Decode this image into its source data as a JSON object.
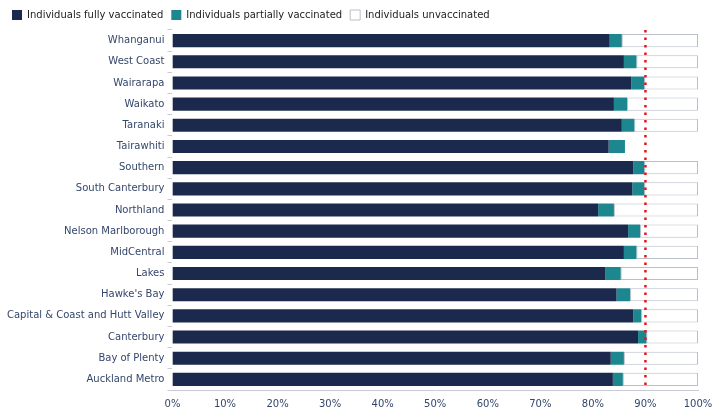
{
  "chart_data": {
    "type": "bar",
    "orientation": "horizontal",
    "stacked": true,
    "legend": "top",
    "grid": false,
    "categories": [
      "Whanganui",
      "West Coast",
      "Wairarapa",
      "Waikato",
      "Taranaki",
      "Tairawhiti",
      "Southern",
      "South Canterbury",
      "Northland",
      "Nelson Marlborough",
      "MidCentral",
      "Lakes",
      "Hawke's Bay",
      "Capital & Coast and Hutt Valley",
      "Canterbury",
      "Bay of Plenty",
      "Auckland Metro"
    ],
    "series": [
      {
        "name": "Individuals fully vaccinated",
        "color": "#1b2a4c",
        "values": [
          83.2,
          85.9,
          87.3,
          84.0,
          85.5,
          83.0,
          87.7,
          87.5,
          81.0,
          86.7,
          85.9,
          82.4,
          84.5,
          87.7,
          88.6,
          83.4,
          83.8
        ]
      },
      {
        "name": "Individuals partially vaccinated",
        "color": "#1d8790",
        "values": [
          2.3,
          2.4,
          2.5,
          2.5,
          2.4,
          3.1,
          2.1,
          2.3,
          3.0,
          2.3,
          2.4,
          2.9,
          2.6,
          1.5,
          1.6,
          2.5,
          1.9
        ]
      },
      {
        "name": "Individuals unvaccinated",
        "color": "#ffffff",
        "values": [
          14.5,
          11.7,
          10.2,
          13.5,
          12.1,
          null,
          10.2,
          10.2,
          16.0,
          11.0,
          11.7,
          14.7,
          12.9,
          10.8,
          9.8,
          14.1,
          14.3
        ]
      }
    ],
    "xlim": [
      0,
      100
    ],
    "xticks": [
      {
        "value": 0,
        "label": "0%"
      },
      {
        "value": 10,
        "label": "10%"
      },
      {
        "value": 20,
        "label": "20%"
      },
      {
        "value": 30,
        "label": "30%"
      },
      {
        "value": 40,
        "label": "40%"
      },
      {
        "value": 50,
        "label": "50%"
      },
      {
        "value": 60,
        "label": "60%"
      },
      {
        "value": 70,
        "label": "70%"
      },
      {
        "value": 80,
        "label": "80%"
      },
      {
        "value": 90,
        "label": "90%"
      },
      {
        "value": 100,
        "label": "100%"
      }
    ],
    "reference_line": {
      "value": 90,
      "color": "#e8141b",
      "line_style": "dotted"
    }
  }
}
